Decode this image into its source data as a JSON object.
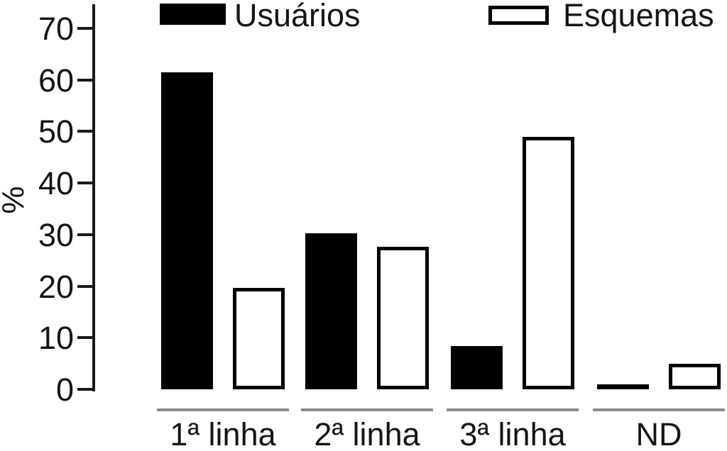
{
  "chart_data": {
    "type": "bar",
    "title": "",
    "xlabel": "",
    "ylabel": "%",
    "categories": [
      "1ª linha",
      "2ª linha",
      "3ª linha",
      "ND"
    ],
    "series": [
      {
        "name": "Usuários",
        "style": "filled-black",
        "values": [
          61.5,
          30.3,
          8.4,
          1.0
        ]
      },
      {
        "name": "Esquemas",
        "style": "outlined-white",
        "values": [
          19.7,
          27.6,
          48.9,
          5.0
        ]
      }
    ],
    "yticks": [
      0,
      10,
      20,
      30,
      40,
      50,
      60,
      70
    ],
    "ylim": [
      0,
      70
    ],
    "grid": false,
    "legend_position": "top",
    "colors": {
      "bar_fill": "#000000",
      "bar_outline": "#000000",
      "axis": "#1a1a1a",
      "group_rule": "#8c8c8c",
      "text": "#151515",
      "background": "#ffffff"
    }
  }
}
